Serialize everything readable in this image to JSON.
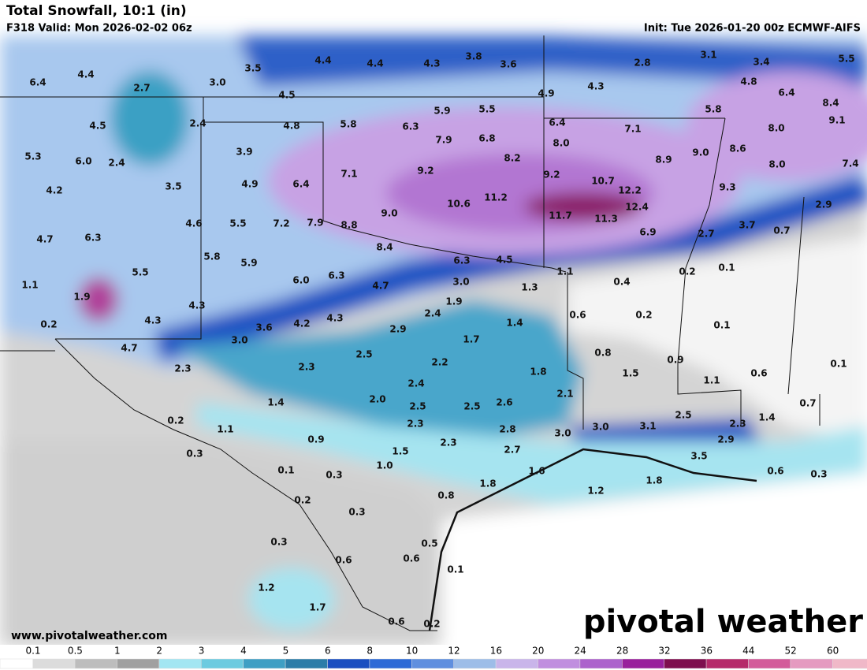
{
  "header": {
    "title": "Total Snowfall, 10:1 (in)",
    "valid": "F318 Valid: Mon 2026-02-02 06z",
    "init": "Init: Tue 2026-01-20 00z ECMWF-AIFS"
  },
  "map": {
    "labels": [
      "6.4",
      "4.4",
      "2.7",
      "3.0",
      "3.5",
      "4.4",
      "4.4",
      "4.3",
      "3.8",
      "3.6",
      "2.8",
      "3.1",
      "3.4",
      "5.5",
      "4.5",
      "2.4",
      "4.5",
      "4.8",
      "5.8",
      "6.3",
      "5.9",
      "5.5",
      "4.9",
      "4.3",
      "4.8",
      "6.4",
      "8.4",
      "5.3",
      "6.0",
      "2.4",
      "3.9",
      "7.9",
      "6.8",
      "6.4",
      "8.0",
      "7.1",
      "5.8",
      "8.0",
      "9.1",
      "4.2",
      "3.5",
      "4.9",
      "6.4",
      "7.1",
      "9.2",
      "8.2",
      "9.0",
      "8.9",
      "8.6",
      "8.0",
      "7.4",
      "4.7",
      "6.3",
      "4.6",
      "5.5",
      "7.2",
      "7.9",
      "8.8",
      "9.0",
      "10.6",
      "11.2",
      "9.2",
      "10.7",
      "12.2",
      "12.4",
      "11.7",
      "11.3",
      "9.3",
      "6.9",
      "2.7",
      "3.7",
      "0.7",
      "2.9",
      "1.1",
      "1.9",
      "5.5",
      "5.8",
      "5.9",
      "8.4",
      "6.3",
      "4.5",
      "6.0",
      "6.3",
      "4.7",
      "3.0",
      "1.3",
      "1.1",
      "0.4",
      "0.2",
      "0.1",
      "0.2",
      "4.3",
      "4.3",
      "3.6",
      "4.2",
      "4.3",
      "1.9",
      "2.4",
      "2.9",
      "1.4",
      "0.6",
      "0.2",
      "0.1",
      "4.7",
      "3.0",
      "1.7",
      "2.5",
      "0.8",
      "0.9",
      "2.3",
      "2.3",
      "2.2",
      "1.8",
      "1.5",
      "0.6",
      "0.1",
      "1.1",
      "2.4",
      "2.1",
      "1.4",
      "2.0",
      "2.5",
      "2.5",
      "2.6",
      "2.5",
      "1.4",
      "0.7",
      "0.2",
      "1.1",
      "2.3",
      "2.8",
      "3.0",
      "3.0",
      "3.1",
      "2.3",
      "2.9",
      "0.3",
      "0.9",
      "1.5",
      "2.3",
      "2.7",
      "3.5",
      "0.1",
      "0.3",
      "1.0",
      "1.6",
      "0.6",
      "0.3",
      "0.8",
      "1.8",
      "1.8",
      "1.2",
      "0.2",
      "0.3",
      "0.3",
      "0.5",
      "0.6",
      "0.6",
      "0.1",
      "1.2",
      "1.7",
      "0.6",
      "0.2"
    ]
  },
  "footer": {
    "url": "www.pivotalweather.com",
    "logo": "pivotal weather"
  },
  "colorbar": {
    "ticks": [
      "0.1",
      "0.5",
      "1",
      "2",
      "3",
      "4",
      "5",
      "6",
      "8",
      "10",
      "12",
      "16",
      "20",
      "24",
      "28",
      "32",
      "36",
      "44",
      "52",
      "60"
    ],
    "colors": [
      "#ffffff",
      "#dcdcdc",
      "#bdbdbd",
      "#a0a0a0",
      "#a3e6f2",
      "#6ccbe0",
      "#3e9fc4",
      "#2c7da8",
      "#1a4fc0",
      "#2d6ad6",
      "#5f8fdf",
      "#9dbde8",
      "#c9b5ea",
      "#c08fdf",
      "#ac62cc",
      "#99209c",
      "#7e0f4e",
      "#b52a6a",
      "#d35c9a",
      "#e59ac0",
      "#f0b8c8"
    ]
  }
}
